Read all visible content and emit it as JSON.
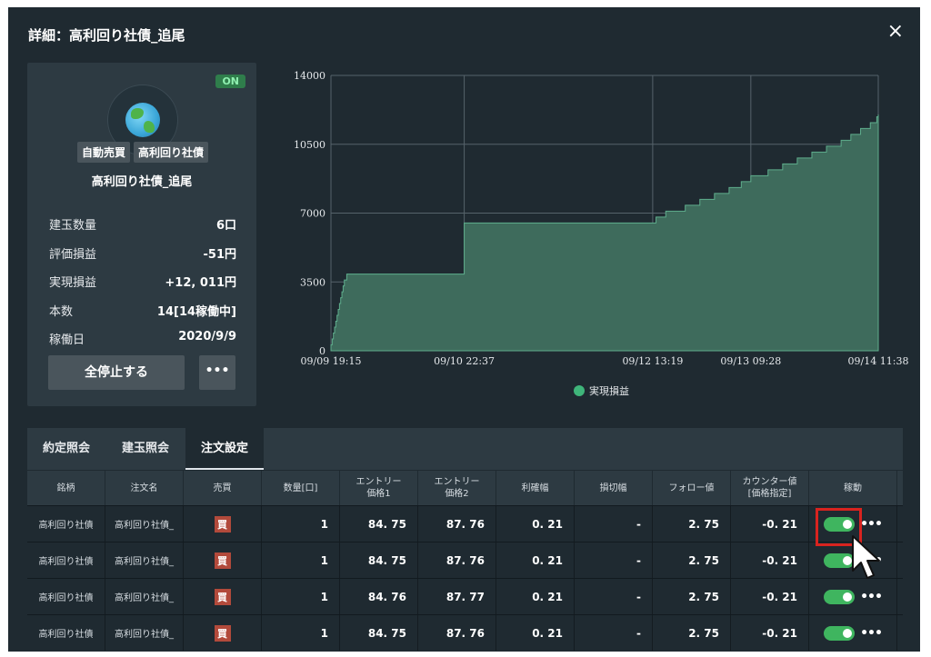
{
  "modal": {
    "title": "詳細：高利回り社債_追尾",
    "close_icon": "×"
  },
  "strategy_card": {
    "status_badge": "ON",
    "avatar_icon": "globe-icon",
    "tags": [
      "自動売買",
      "高利回り社債"
    ],
    "name": "高利回り社債_追尾",
    "stats": [
      {
        "label": "建玉数量",
        "value": "6口"
      },
      {
        "label": "評価損益",
        "value": "-51円"
      },
      {
        "label": "実現損益",
        "value": "+12, 011円"
      },
      {
        "label": "本数",
        "value": "14[14稼働中]"
      },
      {
        "label": "稼働日",
        "value": "2020/9/9"
      }
    ],
    "stop_all_button": "全停止する",
    "more_button": "•••"
  },
  "chart_data": {
    "type": "area",
    "series": [
      {
        "name": "実現損益",
        "points": [
          [
            "09/09 19:15",
            0
          ],
          [
            "09/09 19:15",
            300
          ],
          [
            "09/09 19:30",
            600
          ],
          [
            "09/09 19:45",
            900
          ],
          [
            "09/09 20:00",
            1200
          ],
          [
            "09/09 20:15",
            1500
          ],
          [
            "09/09 20:30",
            1800
          ],
          [
            "09/09 20:45",
            2100
          ],
          [
            "09/09 21:00",
            2400
          ],
          [
            "09/09 21:15",
            2700
          ],
          [
            "09/09 21:30",
            3000
          ],
          [
            "09/09 21:45",
            3300
          ],
          [
            "09/09 22:00",
            3600
          ],
          [
            "09/09 22:30",
            3900
          ],
          [
            "09/10 22:37",
            4500
          ],
          [
            "09/10 22:37",
            6500
          ],
          [
            "09/12 13:19",
            6500
          ],
          [
            "09/12 14:00",
            6800
          ],
          [
            "09/12 16:00",
            7100
          ],
          [
            "09/12 20:00",
            7400
          ],
          [
            "09/12 23:00",
            7700
          ],
          [
            "09/13 02:00",
            8000
          ],
          [
            "09/13 05:00",
            8300
          ],
          [
            "09/13 07:30",
            8600
          ],
          [
            "09/13 09:28",
            8900
          ],
          [
            "09/13 13:00",
            9200
          ],
          [
            "09/13 16:00",
            9500
          ],
          [
            "09/13 19:00",
            9800
          ],
          [
            "09/13 22:00",
            10100
          ],
          [
            "09/14 01:00",
            10400
          ],
          [
            "09/14 04:00",
            10700
          ],
          [
            "09/14 06:00",
            11000
          ],
          [
            "09/14 08:00",
            11300
          ],
          [
            "09/14 10:00",
            11600
          ],
          [
            "09/14 11:20",
            11900
          ],
          [
            "09/14 11:38",
            12011
          ]
        ]
      }
    ],
    "x_tick_labels": [
      "09/09 19:15",
      "09/10 22:37",
      "09/12 13:19",
      "09/13 09:28",
      "09/14 11:38"
    ],
    "y_ticks": [
      0,
      3500,
      7000,
      10500,
      14000
    ],
    "ylim": [
      0,
      14000
    ],
    "grid": true,
    "legend_position": "bottom-center",
    "colors": {
      "fill": "#3e6b5c",
      "line": "#5fae8d",
      "legend_dot": "#3fb57a"
    }
  },
  "tabs": [
    {
      "label": "約定照会"
    },
    {
      "label": "建玉照会"
    },
    {
      "label": "注文設定",
      "active": true
    }
  ],
  "table": {
    "headers": [
      "銘柄",
      "注文名",
      "売買",
      "数量[口]",
      "エントリー\n価格1",
      "エントリー\n価格2",
      "利確幅",
      "損切幅",
      "フォロー値",
      "カウンター値\n[価格指定]",
      "稼動"
    ],
    "rows": [
      {
        "brand": "高利回り社債",
        "order": "高利回り社債_",
        "side": "買",
        "qty": "1",
        "entry1": "84. 75",
        "entry2": "87. 76",
        "take": "0. 21",
        "stop": "-",
        "follow": "2. 75",
        "counter": "-0. 21"
      },
      {
        "brand": "高利回り社債",
        "order": "高利回り社債_",
        "side": "買",
        "qty": "1",
        "entry1": "84. 75",
        "entry2": "87. 76",
        "take": "0. 21",
        "stop": "-",
        "follow": "2. 75",
        "counter": "-0. 21"
      },
      {
        "brand": "高利回り社債",
        "order": "高利回り社債_",
        "side": "買",
        "qty": "1",
        "entry1": "84. 76",
        "entry2": "87. 77",
        "take": "0. 21",
        "stop": "-",
        "follow": "2. 75",
        "counter": "-0. 21"
      },
      {
        "brand": "高利回り社債",
        "order": "高利回り社債_",
        "side": "買",
        "qty": "1",
        "entry1": "84. 75",
        "entry2": "87. 76",
        "take": "0. 21",
        "stop": "-",
        "follow": "2. 75",
        "counter": "-0. 21"
      }
    ],
    "row_more_label": "•••"
  }
}
